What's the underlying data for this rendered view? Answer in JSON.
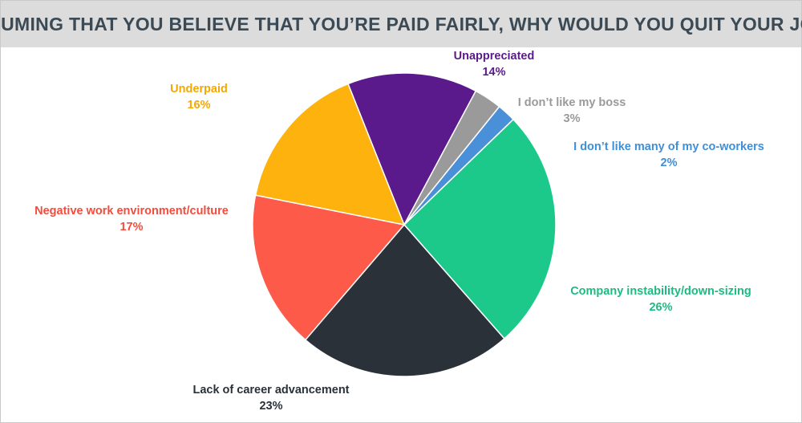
{
  "chart_data": {
    "type": "pie",
    "title": "ASSUMING THAT YOU BELIEVE THAT YOU’RE PAID FAIRLY, WHY WOULD YOU QUIT YOUR JOB?",
    "categories": [
      "Company instability/down-sizing",
      "Lack of career advancement",
      "Negative work environment/culture",
      "Underpaid",
      "Unappreciated",
      "I don’t like  my boss",
      "I don’t like  many of my co-workers"
    ],
    "values": [
      26,
      23,
      17,
      16,
      14,
      3,
      2
    ],
    "value_labels": [
      "26%",
      "23%",
      "17%",
      "16%",
      "14%",
      "3%",
      "2%"
    ],
    "colors": [
      "#1dc98a",
      "#2a3139",
      "#fe5a4a",
      "#fdb20e",
      "#5a1a8c",
      "#9a9a9a",
      "#4a90d9"
    ],
    "label_colors": [
      "#1dbb82",
      "#2a3139",
      "#f44b3c",
      "#f5a800",
      "#5a1a8c",
      "#9a9a9a",
      "#3f8fd6"
    ],
    "legend": "none"
  }
}
